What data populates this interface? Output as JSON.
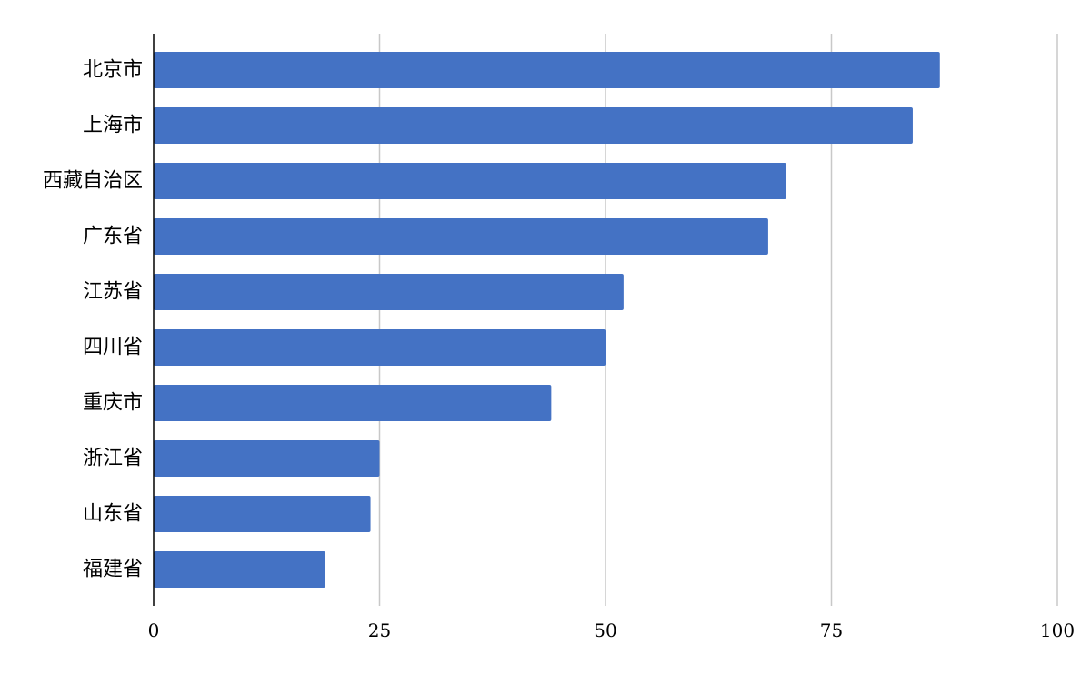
{
  "chart_data": {
    "type": "bar",
    "orientation": "horizontal",
    "title": "",
    "xlabel": "",
    "ylabel": "",
    "categories": [
      "北京市",
      "上海市",
      "西藏自治区",
      "广东省",
      "江苏省",
      "四川省",
      "重庆市",
      "浙江省",
      "山东省",
      "福建省"
    ],
    "values": [
      87,
      84,
      70,
      68,
      52,
      50,
      44,
      25,
      24,
      19
    ],
    "xlim": [
      0,
      100
    ],
    "xticks": [
      0,
      25,
      50,
      75,
      100
    ],
    "grid": true,
    "legend": "none",
    "bar_color": "#4472c4"
  }
}
